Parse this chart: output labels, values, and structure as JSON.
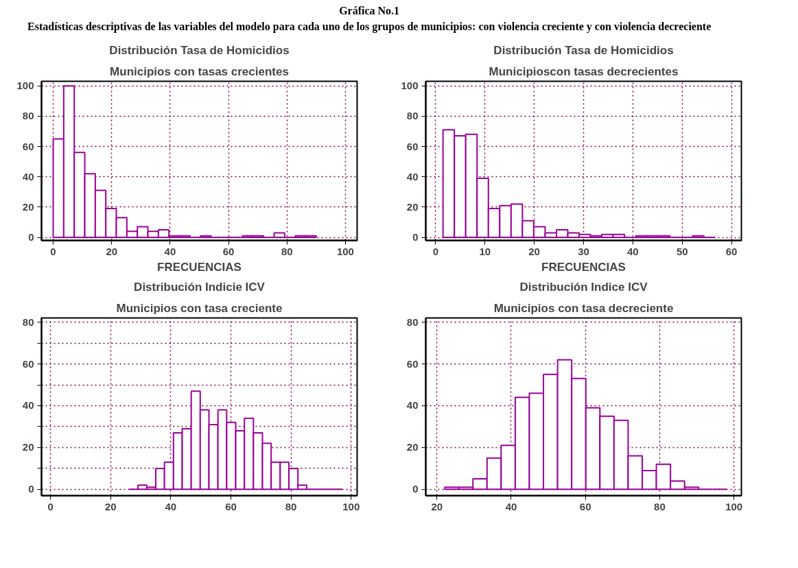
{
  "chart_data": [
    {
      "type": "histogram",
      "title": "Distribución Tasa de Homicidios",
      "subtitle": "Municipios con tasas crecientes",
      "xlabel": "FRECUENCIAS",
      "annotations": [
        "Gráfica No.1",
        "Estadísticas descriptivas de las variables del modelo para cada uno de los grupos  de municipios: con violencia creciente y con violencia decreciente"
      ],
      "bins": [
        0,
        3.6,
        7.2,
        10.8,
        14.4,
        18,
        21.6,
        25.2,
        28.8,
        32.4,
        36,
        39.6,
        43.2,
        46.8,
        50.4,
        54,
        57.6,
        61.2,
        64.8,
        68.4,
        72,
        75.6,
        79.2,
        82.8,
        86.4,
        90
      ],
      "values": [
        65,
        100,
        56,
        42,
        31,
        19,
        13,
        4,
        7,
        4,
        5,
        1,
        1,
        0,
        1,
        0,
        0,
        0,
        1,
        1,
        0,
        3,
        0,
        1,
        1
      ],
      "color": "#990099",
      "xlim": [
        -4,
        104
      ],
      "ylim": [
        -2,
        103
      ],
      "xticks": [
        0,
        20,
        40,
        60,
        80,
        100
      ],
      "yticks": [
        0,
        20,
        40,
        60,
        80,
        100
      ],
      "grid": true
    },
    {
      "type": "histogram",
      "title": "Distribución Tasa de Homicidios",
      "subtitle": "Municipioscon tasas decrecientes",
      "xlabel": "FRECUENCIAS",
      "bins": [
        1.5,
        3.8,
        6.1,
        8.4,
        10.7,
        13,
        15.3,
        17.6,
        19.9,
        22.2,
        24.5,
        26.8,
        29.1,
        31.4,
        33.7,
        36,
        38.3,
        40.6,
        42.9,
        45.2,
        47.5,
        49.8,
        52.1,
        54.4,
        56.7
      ],
      "values": [
        71,
        67,
        68,
        39,
        19,
        21,
        22,
        11,
        7,
        3,
        5,
        3,
        2,
        1,
        2,
        2,
        0,
        1,
        1,
        1,
        0,
        0,
        1,
        0
      ],
      "color": "#990099",
      "xlim": [
        -2,
        62
      ],
      "ylim": [
        -2,
        103
      ],
      "xticks": [
        0,
        10,
        20,
        30,
        40,
        50,
        60
      ],
      "yticks": [
        0,
        20,
        40,
        60,
        80,
        100
      ],
      "grid": true
    },
    {
      "type": "histogram",
      "title": "Distribución Indicie ICV",
      "subtitle": "Municipios con tasa creciente",
      "bins": [
        26.1,
        29.1,
        32.0,
        35.0,
        37.9,
        40.9,
        43.8,
        46.8,
        49.8,
        52.7,
        55.7,
        58.6,
        61.6,
        64.5,
        67.5,
        70.5,
        73.4,
        76.4,
        79.3,
        82.3,
        85.2,
        88.2,
        91.2,
        94.1,
        97.1
      ],
      "values": [
        0,
        2,
        1,
        10,
        13,
        27,
        29,
        47,
        38,
        31,
        38,
        32,
        28,
        34,
        27,
        22,
        13,
        13,
        10,
        2,
        0,
        0,
        0,
        0
      ],
      "color": "#990099",
      "xlim": [
        -3,
        102
      ],
      "ylim": [
        -3,
        82
      ],
      "xticks": [
        0,
        20,
        40,
        60,
        80,
        100
      ],
      "yticks": [
        0,
        {
          "value": 10,
          "label": null
        },
        20,
        {
          "value": 30,
          "label": null
        },
        40,
        {
          "value": 50,
          "label": null
        },
        60,
        {
          "value": 70,
          "label": null
        },
        80
      ],
      "grid": true
    },
    {
      "type": "histogram",
      "title": "Distribución Indice ICV",
      "subtitle": "Municipios con tasa decreciente",
      "bins": [
        22.1,
        25.9,
        29.7,
        33.5,
        37.3,
        41.1,
        44.9,
        48.7,
        52.5,
        56.3,
        60.1,
        63.9,
        67.7,
        71.5,
        75.3,
        79.1,
        82.9,
        86.7,
        90.5,
        94.3,
        98.1
      ],
      "values": [
        1,
        1,
        5,
        15,
        21,
        44,
        46,
        55,
        62,
        53,
        39,
        35,
        33,
        16,
        9,
        12,
        4,
        1,
        0,
        0
      ],
      "color": "#990099",
      "xlim": [
        17,
        102
      ],
      "ylim": [
        -3,
        82
      ],
      "xticks": [
        20,
        40,
        60,
        80,
        100
      ],
      "yticks": [
        0,
        20,
        40,
        60,
        80
      ],
      "grid": true
    }
  ]
}
